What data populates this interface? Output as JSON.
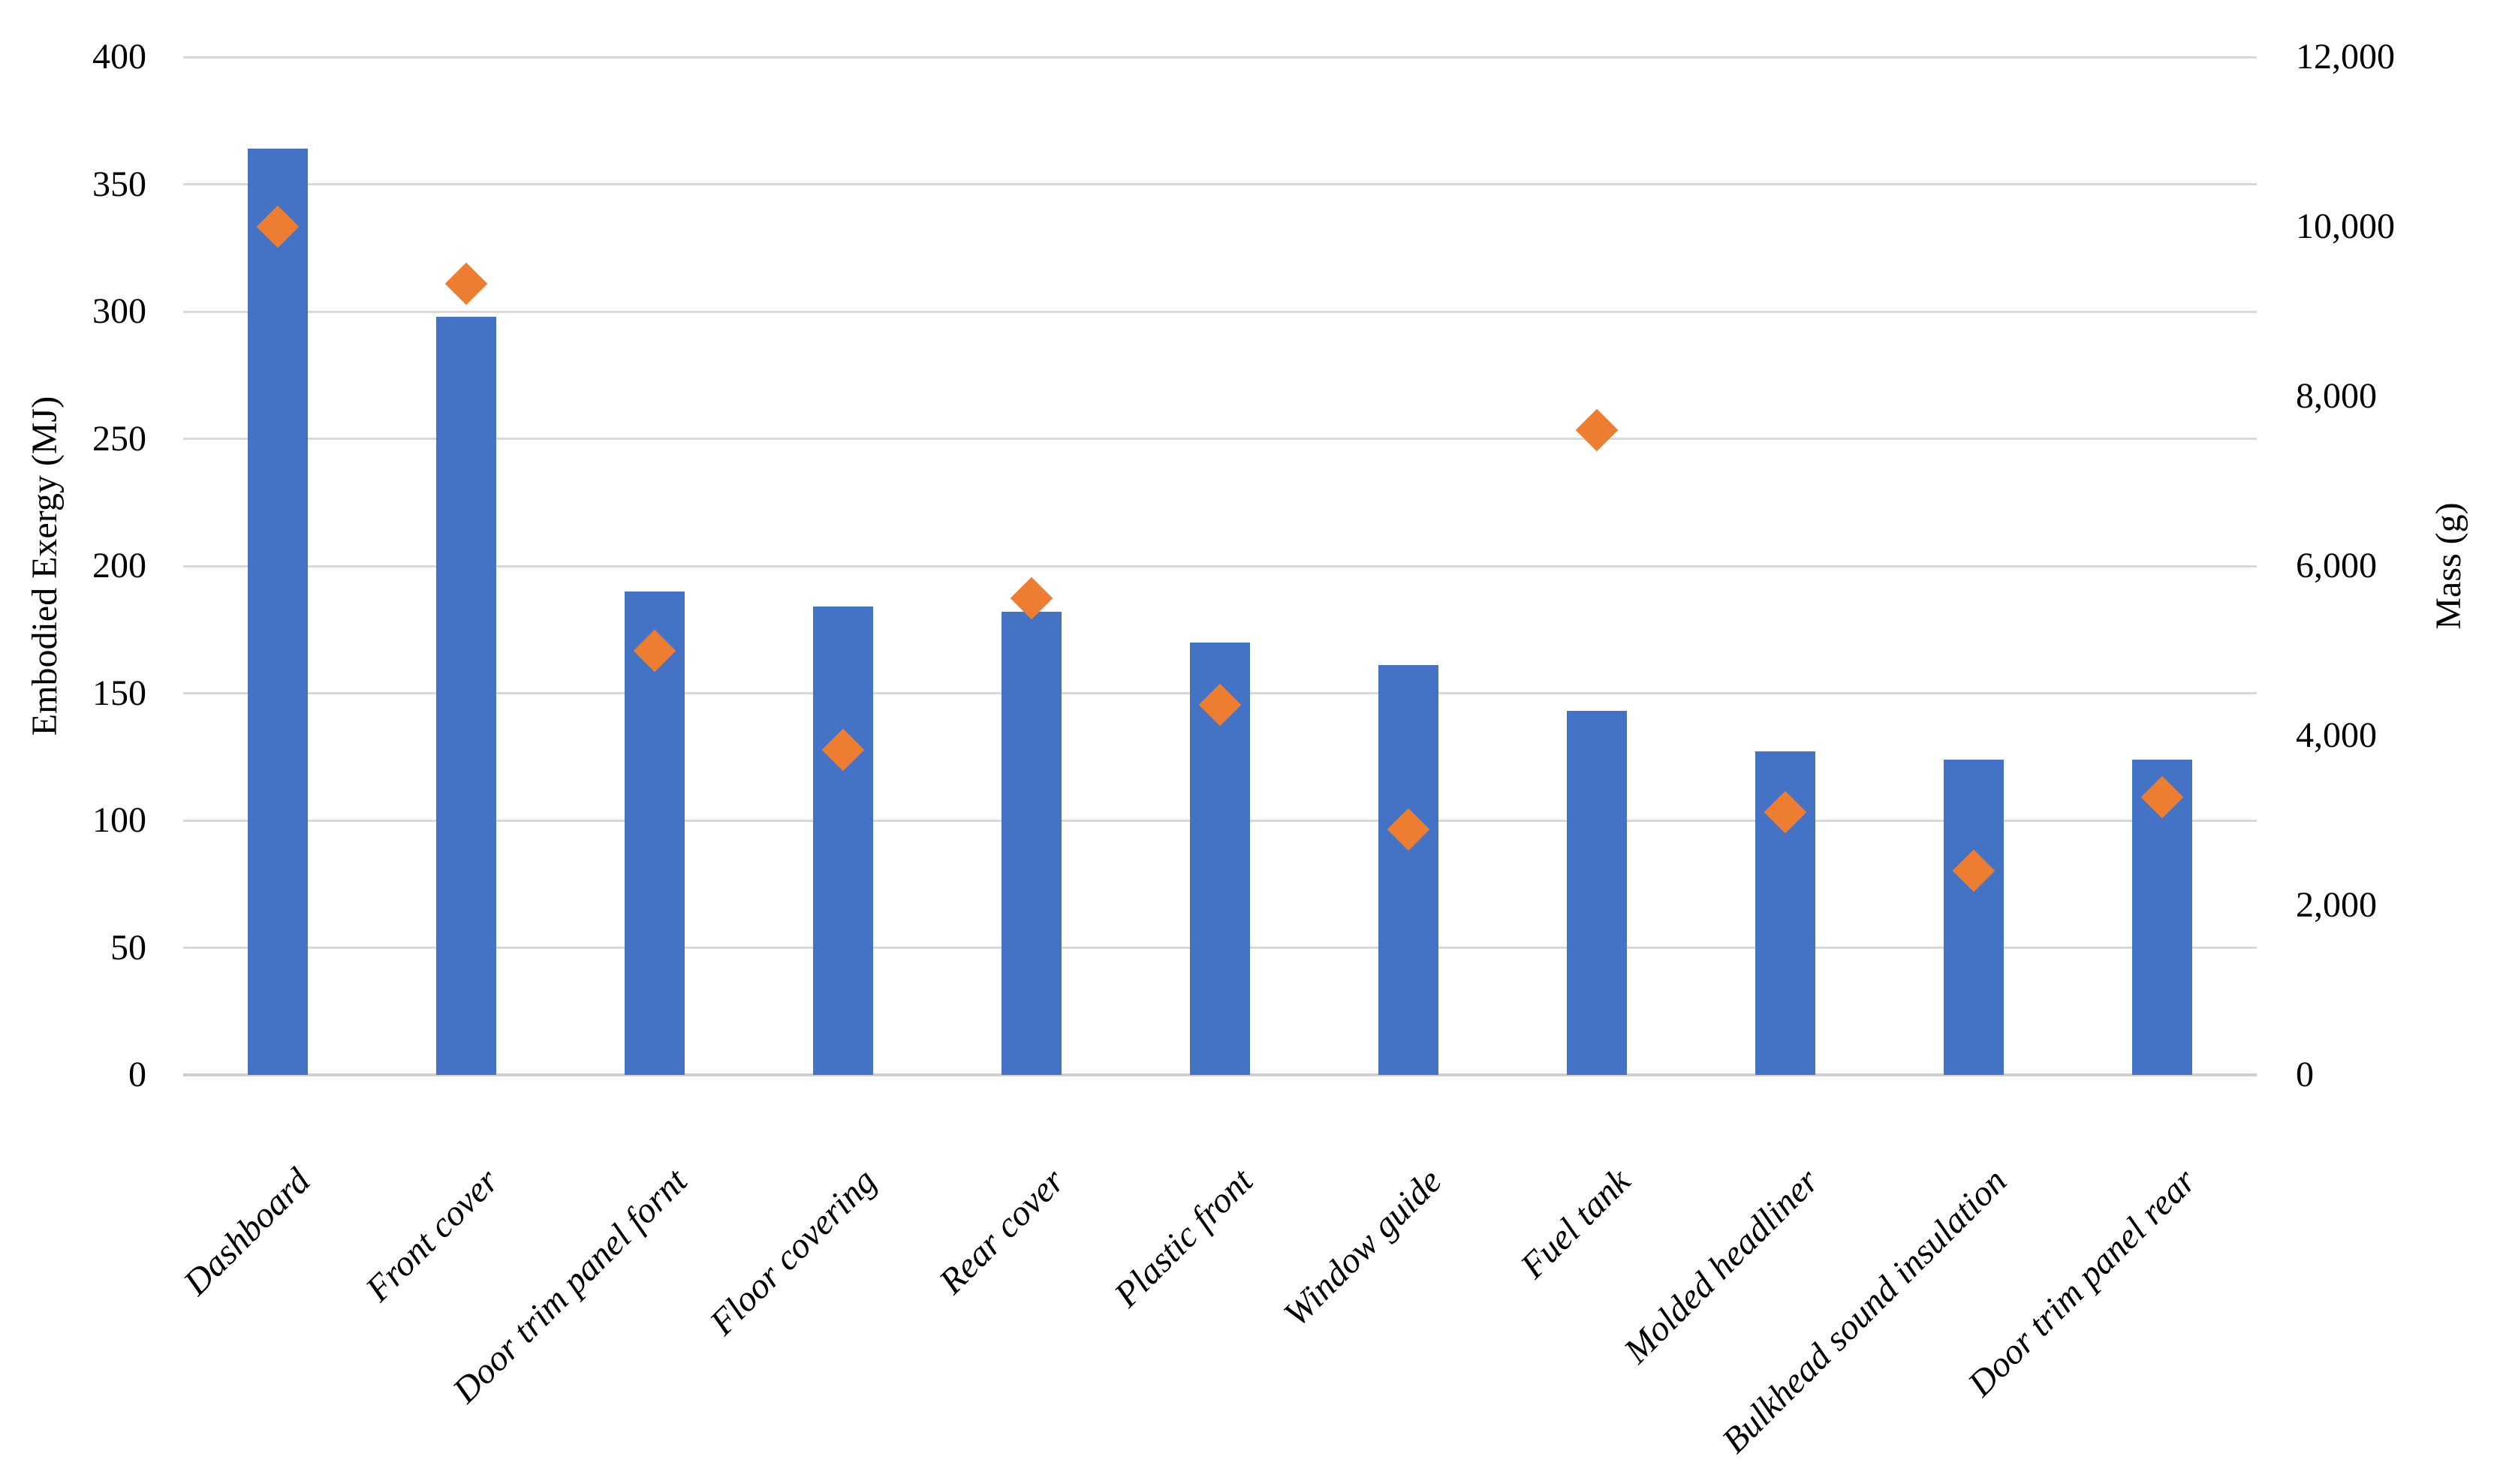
{
  "chart_data": {
    "type": "bar",
    "subtype": "combo-bar-and-diamond-scatter",
    "title": "",
    "categories": [
      "Dashboard",
      "Front cover",
      "Door trim panel fornt",
      "Floor covering",
      "Rear cover",
      "Plastic front",
      "Window guide",
      "Fuel tank",
      "Molded headliner",
      "Bulkhead sound insulation",
      "Door trim panel rear"
    ],
    "series": [
      {
        "name": "Embodied Exergy",
        "type": "bar",
        "axis": "left",
        "color": "#4472C4",
        "values": [
          364,
          298,
          190,
          184,
          182,
          170,
          161,
          143,
          127,
          124,
          124
        ]
      },
      {
        "name": "Mass",
        "type": "scatter",
        "marker": "diamond",
        "axis": "right",
        "color": "#ED7D31",
        "values": [
          10000,
          9330,
          5000,
          3830,
          5620,
          4360,
          2890,
          7600,
          3100,
          2410,
          3270
        ]
      }
    ],
    "y_left": {
      "title": "Embodied Exergy (MJ)",
      "min": 0,
      "max": 400,
      "step": 50,
      "ticks": [
        "0",
        "50",
        "100",
        "150",
        "200",
        "250",
        "300",
        "350",
        "400"
      ]
    },
    "y_right": {
      "title": "Mass (g)",
      "min": 0,
      "max": 12000,
      "step": 2000,
      "ticks": [
        "0",
        "2,000",
        "4,000",
        "6,000",
        "8,000",
        "10,000",
        "12,000"
      ]
    },
    "grid": true,
    "legend": false,
    "background": "#FFFFFF",
    "gridline_color": "#D9D9D9",
    "axisline_color": "#D0CECE"
  }
}
